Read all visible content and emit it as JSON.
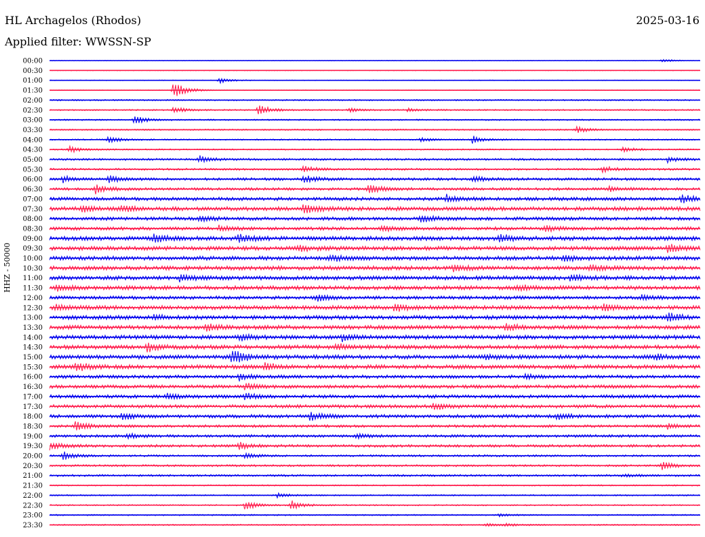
{
  "header": {
    "station": "HL Archagelos (Rhodos)",
    "date": "2025-03-16",
    "filter": "Applied filter: WWSSN-SP"
  },
  "chart_data": {
    "type": "line",
    "title": "HL Archagelos (Rhodos)",
    "ylabel": "HHZ - 50000",
    "colors": {
      "even": "#0000ee",
      "odd": "#ff1a4b"
    },
    "row_times": [
      "00:00",
      "00:30",
      "01:00",
      "01:30",
      "02:00",
      "02:30",
      "03:00",
      "03:30",
      "04:00",
      "04:30",
      "05:00",
      "05:30",
      "06:00",
      "06:30",
      "07:00",
      "07:30",
      "08:00",
      "08:30",
      "09:00",
      "09:30",
      "10:00",
      "10:30",
      "11:00",
      "11:30",
      "12:00",
      "12:30",
      "13:00",
      "13:30",
      "14:00",
      "14:30",
      "15:00",
      "15:30",
      "16:00",
      "16:30",
      "17:00",
      "17:30",
      "18:00",
      "18:30",
      "19:00",
      "19:30",
      "20:00",
      "20:30",
      "21:00",
      "21:30",
      "22:00",
      "22:30",
      "23:00",
      "23:30"
    ],
    "noise_level": [
      1,
      1,
      1,
      1,
      2,
      2,
      2,
      2,
      2,
      2,
      3,
      3,
      4,
      4,
      5,
      6,
      5,
      5,
      6,
      6,
      6,
      6,
      6,
      6,
      5,
      6,
      6,
      6,
      6,
      6,
      6,
      6,
      5,
      5,
      5,
      5,
      5,
      4,
      4,
      4,
      3,
      3,
      3,
      2,
      2,
      2,
      2,
      2
    ],
    "events": [
      {
        "row": 0,
        "x": 0.94,
        "amp": 5
      },
      {
        "row": 2,
        "x": 0.26,
        "amp": 9
      },
      {
        "row": 3,
        "x": 0.19,
        "amp": 28
      },
      {
        "row": 5,
        "x": 0.32,
        "amp": 16
      },
      {
        "row": 5,
        "x": 0.19,
        "amp": 10
      },
      {
        "row": 5,
        "x": 0.46,
        "amp": 6
      },
      {
        "row": 5,
        "x": 0.55,
        "amp": 6
      },
      {
        "row": 6,
        "x": 0.13,
        "amp": 14
      },
      {
        "row": 7,
        "x": 0.81,
        "amp": 10
      },
      {
        "row": 8,
        "x": 0.09,
        "amp": 10
      },
      {
        "row": 8,
        "x": 0.57,
        "amp": 7
      },
      {
        "row": 8,
        "x": 0.65,
        "amp": 11
      },
      {
        "row": 9,
        "x": 0.03,
        "amp": 10
      },
      {
        "row": 9,
        "x": 0.88,
        "amp": 8
      },
      {
        "row": 10,
        "x": 0.23,
        "amp": 10
      },
      {
        "row": 10,
        "x": 0.95,
        "amp": 8
      },
      {
        "row": 11,
        "x": 0.39,
        "amp": 10
      },
      {
        "row": 11,
        "x": 0.85,
        "amp": 9
      },
      {
        "row": 12,
        "x": 0.02,
        "amp": 9
      },
      {
        "row": 12,
        "x": 0.09,
        "amp": 10
      },
      {
        "row": 12,
        "x": 0.39,
        "amp": 11
      },
      {
        "row": 12,
        "x": 0.65,
        "amp": 8
      },
      {
        "row": 13,
        "x": 0.07,
        "amp": 13
      },
      {
        "row": 13,
        "x": 0.49,
        "amp": 16
      },
      {
        "row": 13,
        "x": 0.86,
        "amp": 8
      },
      {
        "row": 14,
        "x": 0.61,
        "amp": 12
      },
      {
        "row": 14,
        "x": 0.97,
        "amp": 14
      },
      {
        "row": 15,
        "x": 0.05,
        "amp": 9
      },
      {
        "row": 15,
        "x": 0.11,
        "amp": 10
      },
      {
        "row": 15,
        "x": 0.39,
        "amp": 15
      },
      {
        "row": 16,
        "x": 0.23,
        "amp": 10
      },
      {
        "row": 16,
        "x": 0.57,
        "amp": 11
      },
      {
        "row": 17,
        "x": 0.26,
        "amp": 10
      },
      {
        "row": 17,
        "x": 0.51,
        "amp": 10
      },
      {
        "row": 17,
        "x": 0.76,
        "amp": 9
      },
      {
        "row": 18,
        "x": 0.16,
        "amp": 11
      },
      {
        "row": 18,
        "x": 0.29,
        "amp": 14
      },
      {
        "row": 18,
        "x": 0.69,
        "amp": 12
      },
      {
        "row": 19,
        "x": 0.38,
        "amp": 10
      },
      {
        "row": 19,
        "x": 0.95,
        "amp": 11
      },
      {
        "row": 20,
        "x": 0.43,
        "amp": 10
      },
      {
        "row": 20,
        "x": 0.79,
        "amp": 8
      },
      {
        "row": 21,
        "x": 0.62,
        "amp": 9
      },
      {
        "row": 21,
        "x": 0.83,
        "amp": 10
      },
      {
        "row": 22,
        "x": 0.2,
        "amp": 10
      },
      {
        "row": 22,
        "x": 0.8,
        "amp": 9
      },
      {
        "row": 23,
        "x": 0.01,
        "amp": 8
      },
      {
        "row": 23,
        "x": 0.72,
        "amp": 8
      },
      {
        "row": 24,
        "x": 0.41,
        "amp": 11
      },
      {
        "row": 24,
        "x": 0.91,
        "amp": 8
      },
      {
        "row": 25,
        "x": 0.01,
        "amp": 10
      },
      {
        "row": 25,
        "x": 0.53,
        "amp": 12
      },
      {
        "row": 25,
        "x": 0.85,
        "amp": 10
      },
      {
        "row": 26,
        "x": 0.16,
        "amp": 8
      },
      {
        "row": 26,
        "x": 0.95,
        "amp": 12
      },
      {
        "row": 27,
        "x": 0.24,
        "amp": 9
      },
      {
        "row": 27,
        "x": 0.7,
        "amp": 11
      },
      {
        "row": 28,
        "x": 0.29,
        "amp": 11
      },
      {
        "row": 28,
        "x": 0.45,
        "amp": 10
      },
      {
        "row": 29,
        "x": 0.15,
        "amp": 12
      },
      {
        "row": 29,
        "x": 0.44,
        "amp": 9
      },
      {
        "row": 30,
        "x": 0.28,
        "amp": 26
      },
      {
        "row": 30,
        "x": 0.67,
        "amp": 6
      },
      {
        "row": 30,
        "x": 0.93,
        "amp": 8
      },
      {
        "row": 31,
        "x": 0.04,
        "amp": 12
      },
      {
        "row": 31,
        "x": 0.33,
        "amp": 12
      },
      {
        "row": 32,
        "x": 0.29,
        "amp": 10
      },
      {
        "row": 32,
        "x": 0.73,
        "amp": 7
      },
      {
        "row": 33,
        "x": 0.3,
        "amp": 9
      },
      {
        "row": 34,
        "x": 0.18,
        "amp": 8
      },
      {
        "row": 34,
        "x": 0.3,
        "amp": 9
      },
      {
        "row": 35,
        "x": 0.59,
        "amp": 10
      },
      {
        "row": 36,
        "x": 0.11,
        "amp": 10
      },
      {
        "row": 36,
        "x": 0.4,
        "amp": 12
      },
      {
        "row": 36,
        "x": 0.78,
        "amp": 9
      },
      {
        "row": 37,
        "x": 0.04,
        "amp": 18
      },
      {
        "row": 37,
        "x": 0.95,
        "amp": 7
      },
      {
        "row": 38,
        "x": 0.12,
        "amp": 8
      },
      {
        "row": 38,
        "x": 0.47,
        "amp": 6
      },
      {
        "row": 39,
        "x": 0.0,
        "amp": 12
      },
      {
        "row": 39,
        "x": 0.29,
        "amp": 11
      },
      {
        "row": 40,
        "x": 0.02,
        "amp": 12
      },
      {
        "row": 40,
        "x": 0.3,
        "amp": 7
      },
      {
        "row": 41,
        "x": 0.94,
        "amp": 12
      },
      {
        "row": 42,
        "x": 0.88,
        "amp": 4
      },
      {
        "row": 44,
        "x": 0.35,
        "amp": 6
      },
      {
        "row": 45,
        "x": 0.3,
        "amp": 14
      },
      {
        "row": 45,
        "x": 0.37,
        "amp": 14
      },
      {
        "row": 46,
        "x": 0.69,
        "amp": 4
      },
      {
        "row": 47,
        "x": 0.67,
        "amp": 4
      },
      {
        "row": 47,
        "x": 0.7,
        "amp": 4
      }
    ]
  }
}
